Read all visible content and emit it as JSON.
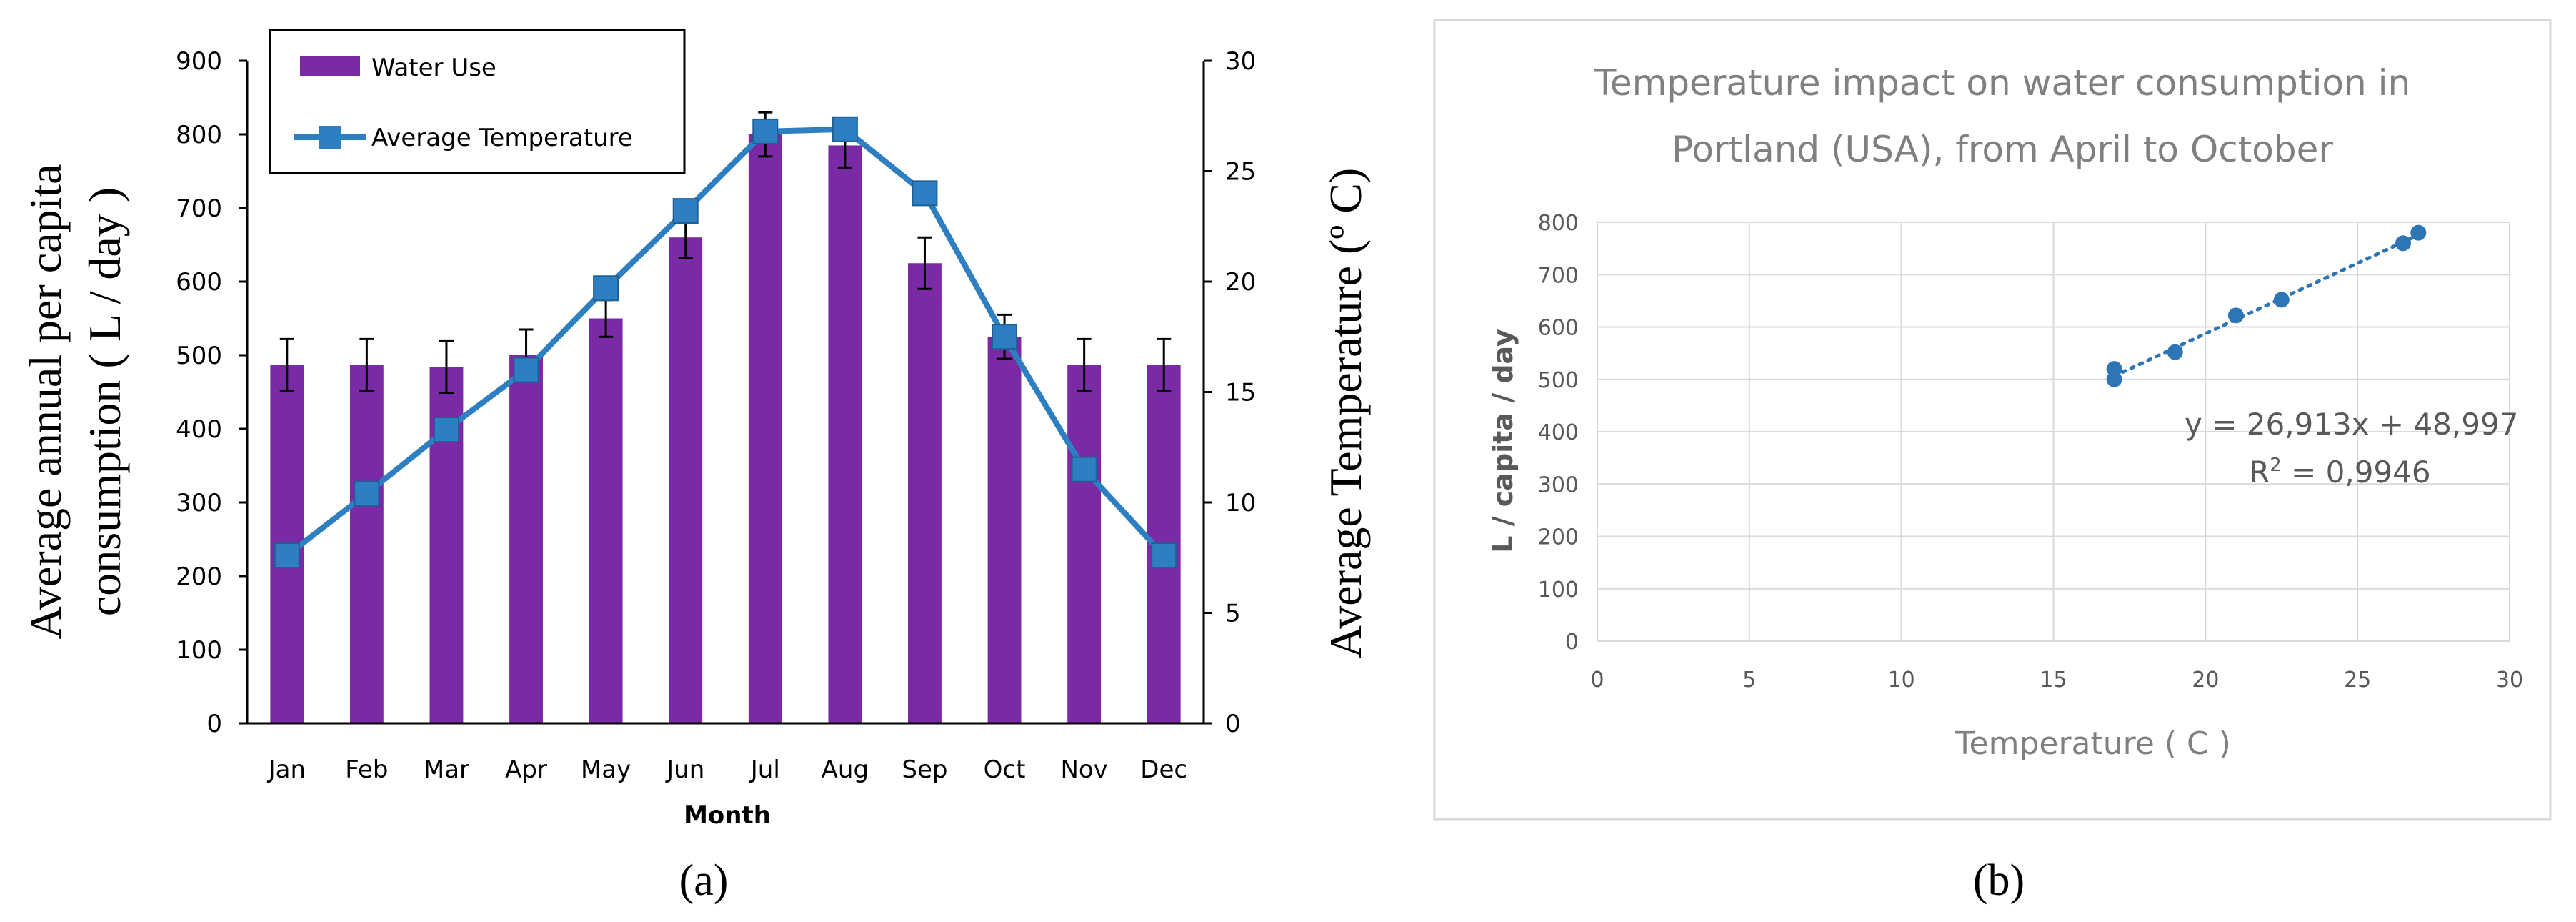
{
  "chart_data": [
    {
      "type": "bar+line",
      "panel_label": "(a)",
      "categories": [
        "Jan",
        "Feb",
        "Mar",
        "Apr",
        "May",
        "Jun",
        "Jul",
        "Aug",
        "Sep",
        "Oct",
        "Nov",
        "Dec"
      ],
      "series": [
        {
          "name": "Water Use",
          "kind": "bar",
          "axis": "left",
          "color": "#7b2aa5",
          "values": [
            487,
            487,
            484,
            500,
            550,
            660,
            800,
            785,
            625,
            525,
            487,
            487
          ],
          "errors": [
            35,
            35,
            35,
            35,
            25,
            28,
            30,
            30,
            35,
            30,
            35,
            35
          ]
        },
        {
          "name": "Average Temperature",
          "kind": "line",
          "axis": "right",
          "color": "#2e7fc1",
          "values": [
            7.6,
            10.4,
            13.3,
            16.0,
            19.7,
            23.2,
            26.8,
            26.9,
            24.0,
            17.5,
            11.5,
            7.6
          ]
        }
      ],
      "xlabel": "Month",
      "ylabel_left_line1": "Average annual per capita",
      "ylabel_left_line2": "consumption  ( L / day )",
      "ylabel_right": "Average Temperature (º C)",
      "ylim_left": [
        0,
        900
      ],
      "yticks_left": [
        "0",
        "100",
        "200",
        "300",
        "400",
        "500",
        "600",
        "700",
        "800",
        "900"
      ],
      "ylim_right": [
        0,
        30
      ],
      "yticks_right": [
        "0",
        "5",
        "10",
        "15",
        "20",
        "25",
        "30"
      ],
      "legend": [
        "Water Use",
        "Average Temperature"
      ],
      "legend_placement": "top-left"
    },
    {
      "type": "scatter",
      "panel_label": "(b)",
      "title_line1": "Temperature impact on water consumption in",
      "title_line2": "Portland (USA), from April to October",
      "xlabel": "Temperature ( C )",
      "ylabel": "L / capita / day",
      "xlim": [
        0,
        30
      ],
      "xticks": [
        "0",
        "5",
        "10",
        "15",
        "20",
        "25",
        "30"
      ],
      "ylim": [
        0,
        800
      ],
      "yticks": [
        "0",
        "100",
        "200",
        "300",
        "400",
        "500",
        "600",
        "700",
        "800"
      ],
      "points": [
        {
          "x": 17.0,
          "y": 500
        },
        {
          "x": 17.0,
          "y": 520
        },
        {
          "x": 19.0,
          "y": 552
        },
        {
          "x": 21.0,
          "y": 622
        },
        {
          "x": 22.5,
          "y": 652
        },
        {
          "x": 26.5,
          "y": 760
        },
        {
          "x": 27.0,
          "y": 780
        }
      ],
      "trendline": {
        "slope": 26.913,
        "intercept": 48.997,
        "x_from": 17,
        "x_to": 27
      },
      "equation": "y = 26,913x + 48,997",
      "r2_prefix": "R",
      "r2_sup": "2",
      "r2_suffix": " = 0,9946",
      "color": "#2e75b6"
    }
  ]
}
